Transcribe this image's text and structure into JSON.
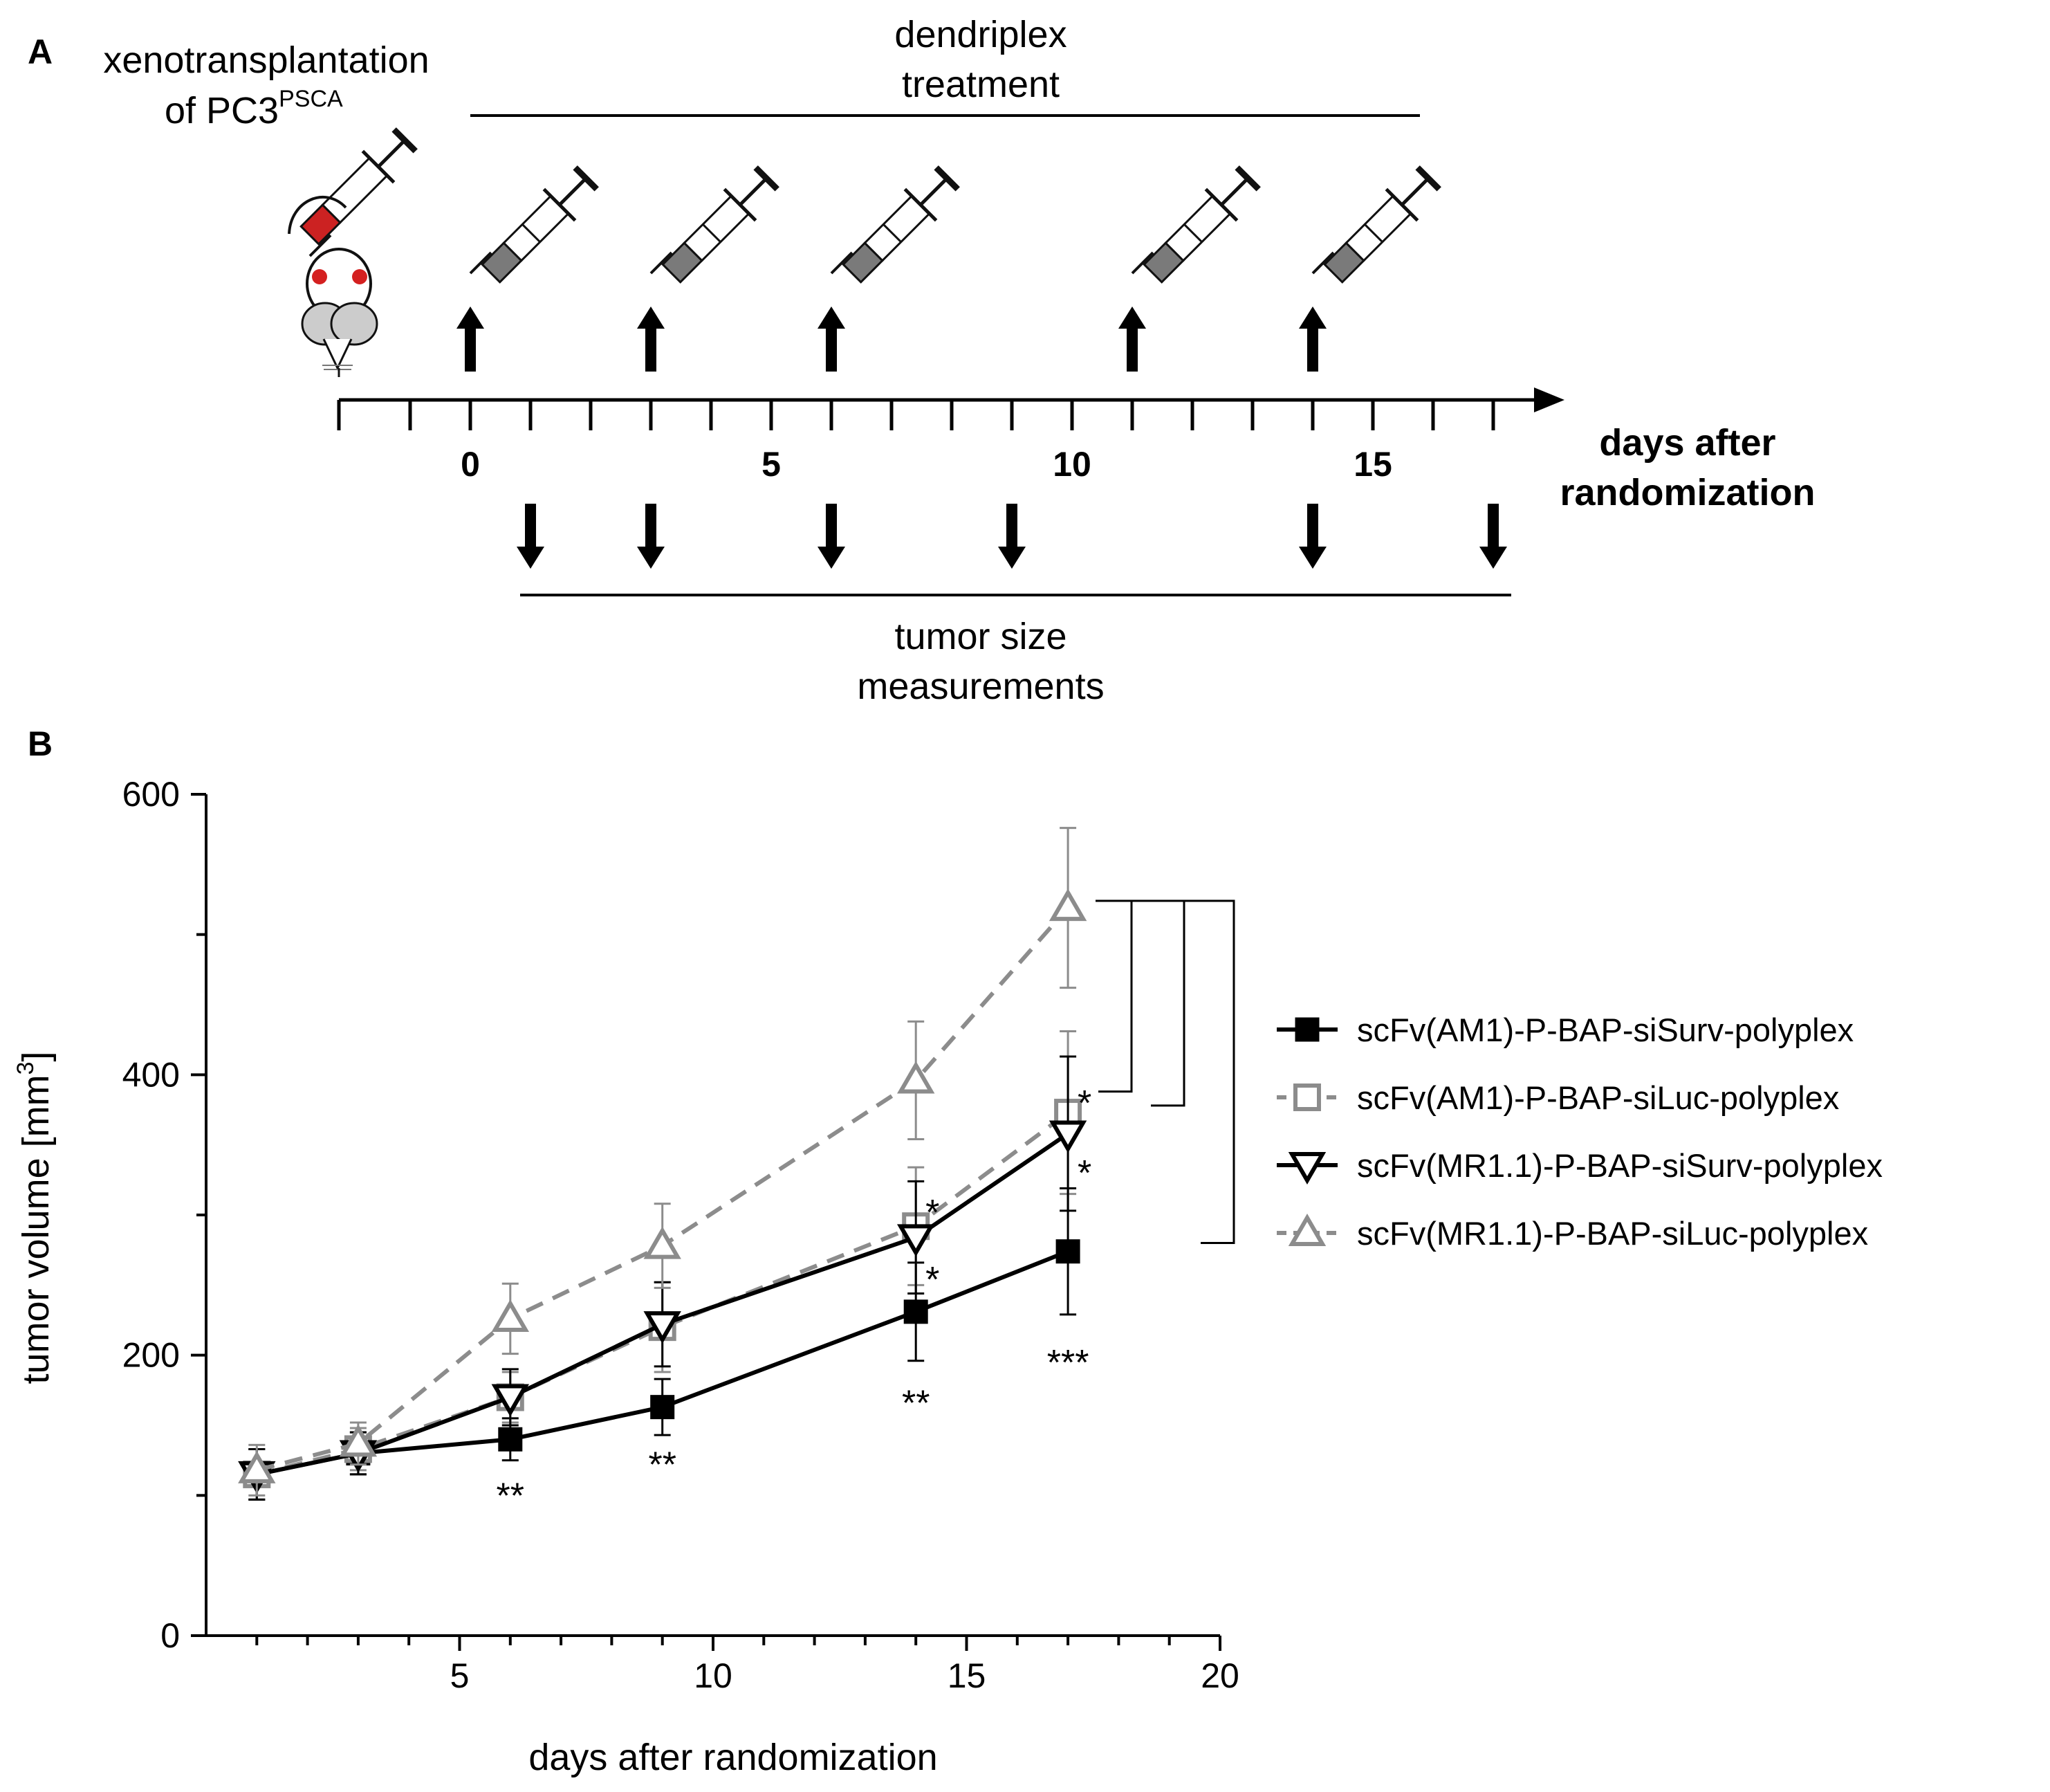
{
  "panel_a": {
    "letter": "A",
    "xeno_label_line1": "xenotransplantation",
    "xeno_label_line2": "of PC3",
    "xeno_label_superscript": "PSCA",
    "treatment_label_line1": "dendriplex",
    "treatment_label_line2": "treatment",
    "measure_label_line1": "tumor size",
    "measure_label_line2": "measurements",
    "axis_label_line1": "days after",
    "axis_label_line2": "randomization",
    "tick_labels": [
      "0",
      "5",
      "10",
      "15"
    ],
    "tick_label_days": [
      0,
      5,
      10,
      15
    ],
    "axis_start_day": -2,
    "axis_end_day": 17,
    "treatment_days": [
      0,
      3,
      6,
      11,
      14
    ],
    "measurement_days": [
      1,
      3,
      6,
      9,
      14,
      17
    ],
    "icons": [
      "syringe-icon",
      "mouse-icon",
      "up-arrow-icon",
      "down-arrow-icon"
    ],
    "colors": {
      "syringe_barrel_red": "#cc2222",
      "syringe_barrel_gray": "#7a7a7a",
      "mouse_eye": "#d42020"
    }
  },
  "chart_data": {
    "type": "line",
    "panel_letter": "B",
    "title": "",
    "xlabel": "days after randomization",
    "ylabel_main": "tumor volume [mm",
    "ylabel_superscript": "3",
    "ylabel_end": "]",
    "xlim": [
      0,
      20
    ],
    "ylim": [
      0,
      600
    ],
    "xticks": [
      5,
      10,
      15,
      20
    ],
    "yticks": [
      0,
      200,
      400,
      600
    ],
    "grid": false,
    "legend_position": "right",
    "x": [
      1,
      3,
      6,
      9,
      14,
      17
    ],
    "series": [
      {
        "name": "scFv(AM1)-P-BAP-siSurv-polyplex",
        "color": "#000000",
        "line": "solid",
        "marker": "filled-square",
        "values": [
          115,
          130,
          140,
          163,
          231,
          274
        ],
        "errors": [
          18,
          15,
          15,
          20,
          35,
          45
        ]
      },
      {
        "name": "scFv(AM1)-P-BAP-siLuc-polyplex",
        "color": "#8c8c8c",
        "line": "dashed",
        "marker": "open-square",
        "values": [
          115,
          133,
          170,
          220,
          292,
          373
        ],
        "errors": [
          18,
          15,
          18,
          32,
          42,
          58
        ]
      },
      {
        "name": "scFv(MR1.1)-P-BAP-siSurv-polyplex",
        "color": "#000000",
        "line": "solid",
        "marker": "open-down-triangle",
        "values": [
          115,
          130,
          170,
          222,
          284,
          358
        ],
        "errors": [
          18,
          15,
          20,
          30,
          40,
          55
        ]
      },
      {
        "name": "scFv(MR1.1)-P-BAP-siLuc-polyplex",
        "color": "#8c8c8c",
        "line": "dashed",
        "marker": "open-up-triangle",
        "values": [
          118,
          137,
          226,
          278,
          396,
          519
        ],
        "errors": [
          18,
          15,
          25,
          30,
          42,
          57
        ]
      }
    ],
    "annotations": [
      {
        "text": "**",
        "x": 6,
        "anchor_value": 100
      },
      {
        "text": "**",
        "x": 9,
        "anchor_value": 122
      },
      {
        "text": "**",
        "x": 14,
        "anchor_value": 166
      },
      {
        "text": "***",
        "x": 17,
        "anchor_value": 195
      },
      {
        "text": "*",
        "x": 14,
        "anchor_value": 302
      },
      {
        "text": "*",
        "x": 14,
        "anchor_value": 254
      },
      {
        "text": "*",
        "x": 17,
        "anchor_value": 380
      },
      {
        "text": "*",
        "x": 17,
        "anchor_value": 330
      }
    ],
    "significance_brackets": [
      {
        "from_value": 524,
        "to_value": 388
      },
      {
        "from_value": 524,
        "to_value": 378
      },
      {
        "from_value": 524,
        "to_value": 280
      }
    ]
  }
}
